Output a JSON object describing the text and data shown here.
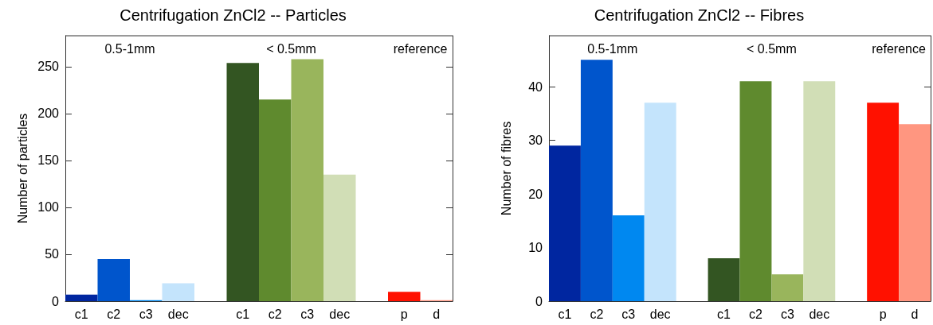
{
  "chart_data": [
    {
      "type": "bar",
      "title": "Centrifugation ZnCl2 -- Particles",
      "ylabel": "Number of particles",
      "categories": [
        "c1",
        "c2",
        "c3",
        "dec",
        null,
        "c1",
        "c2",
        "c3",
        "dec",
        null,
        "p",
        "d"
      ],
      "values": [
        7,
        45,
        1,
        19,
        null,
        254,
        215,
        258,
        135,
        null,
        10,
        1
      ],
      "colors": [
        "#0026a0",
        "#0055cc",
        "#0088f0",
        "#c4e4fc",
        null,
        "#335522",
        "#5f8a2e",
        "#99b55c",
        "#d1deb6",
        null,
        "#ff1100",
        "#ff9680"
      ],
      "annotations": [
        "0.5-1mm",
        "< 0.5mm",
        "reference"
      ],
      "ylim": [
        0,
        283
      ],
      "yticks": [
        0,
        50,
        100,
        150,
        200,
        250
      ]
    },
    {
      "type": "bar",
      "title": "Centrifugation ZnCl2 -- Fibres",
      "ylabel": "Number of fibres",
      "categories": [
        "c1",
        "c2",
        "c3",
        "dec",
        null,
        "c1",
        "c2",
        "c3",
        "dec",
        null,
        "p",
        "d"
      ],
      "values": [
        29,
        45,
        16,
        37,
        null,
        8,
        41,
        5,
        41,
        null,
        37,
        33
      ],
      "colors": [
        "#0026a0",
        "#0055cc",
        "#0088f0",
        "#c4e4fc",
        null,
        "#335522",
        "#5f8a2e",
        "#99b55c",
        "#d1deb6",
        null,
        "#ff1100",
        "#ff9680"
      ],
      "annotations": [
        "0.5-1mm",
        "< 0.5mm",
        "reference"
      ],
      "ylim": [
        0,
        49.5
      ],
      "yticks": [
        0,
        10,
        20,
        30,
        40
      ]
    }
  ]
}
